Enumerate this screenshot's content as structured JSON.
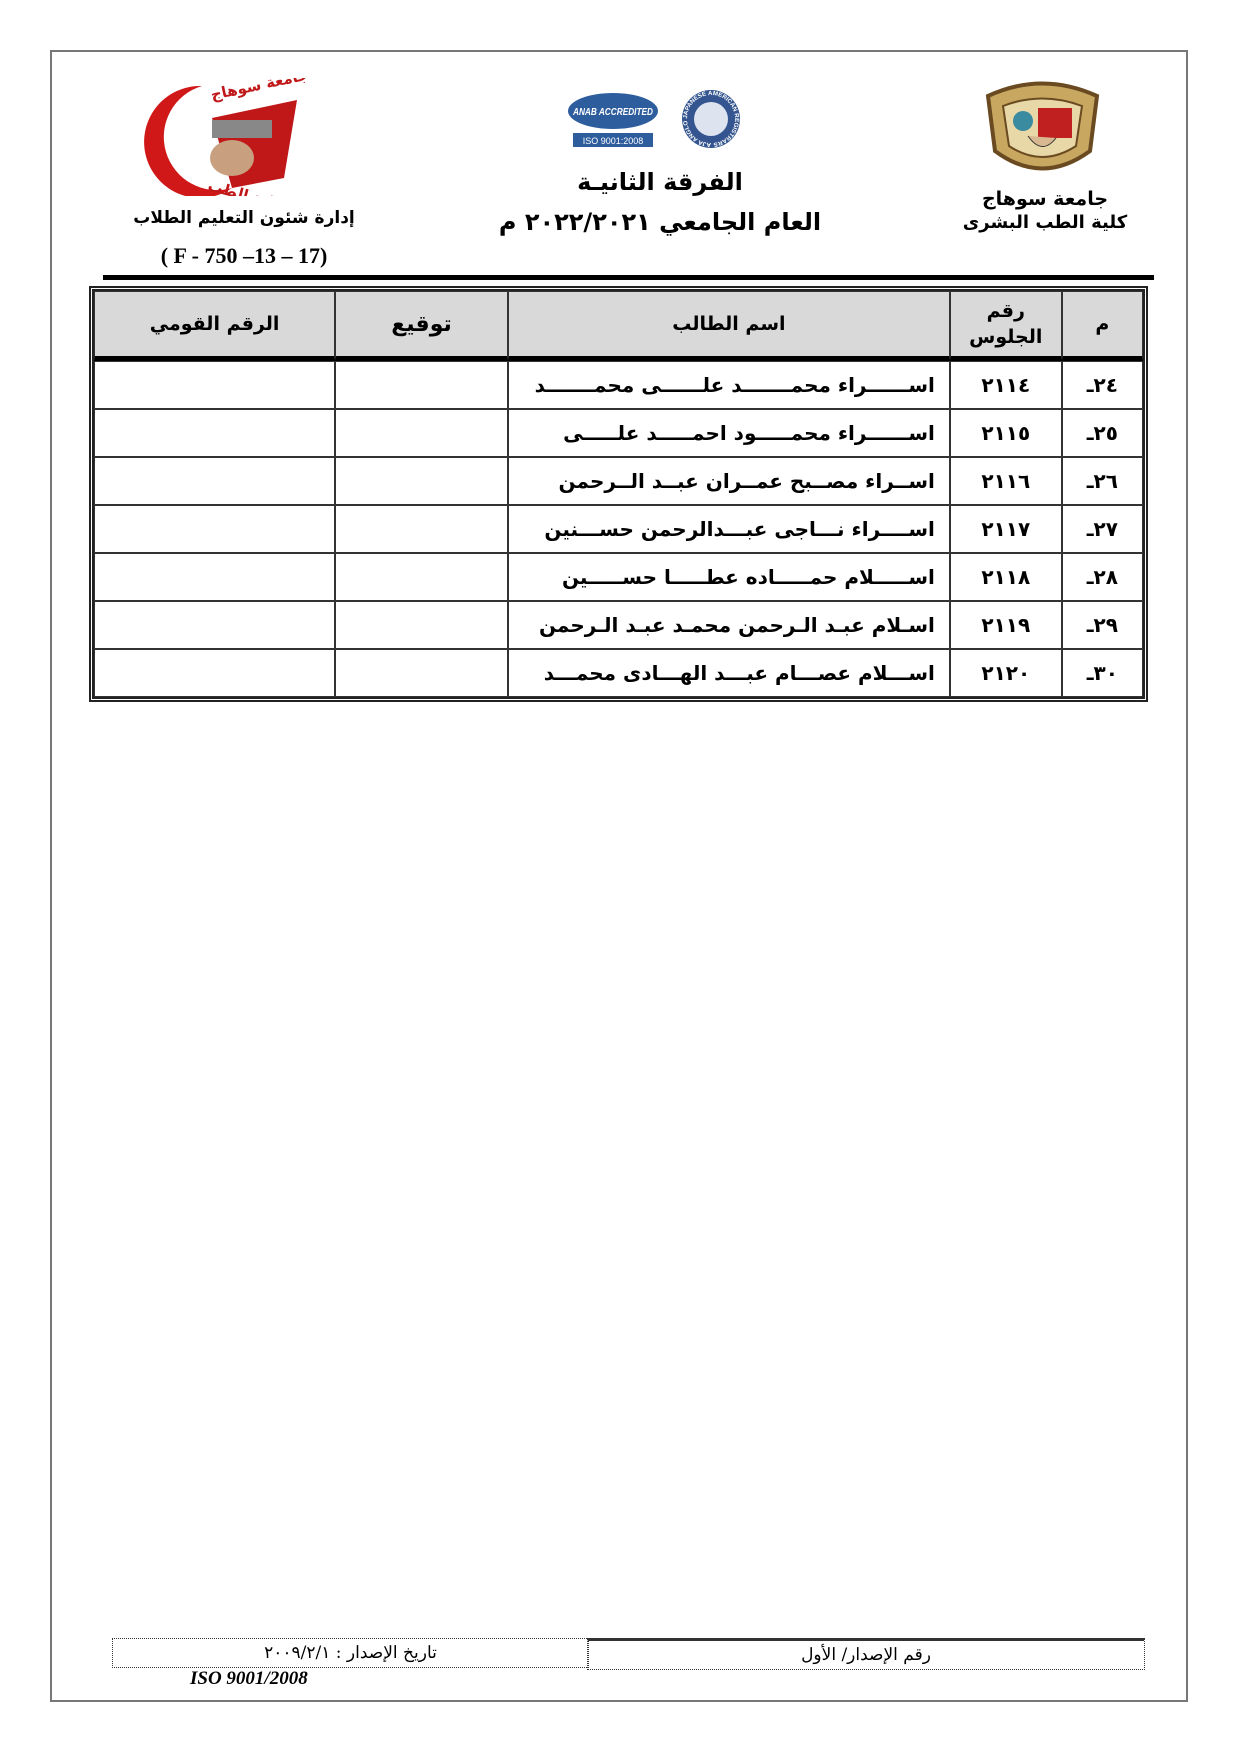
{
  "header": {
    "university": "جامعة سوهاج",
    "faculty": "كلية الطب البشرى",
    "level": "الفرقة الثانيـة",
    "academic_year": "العام الجامعي ٢٠٢٢/٢٠٢١ م",
    "department": "إدارة شئون التعليم الطلاب",
    "form_code": "( F - 750 –13 – 17)",
    "left_logo_text": [
      "جامعة سوهاج",
      "كلية الطب"
    ],
    "accreditation_logos": [
      "ANAB ACCREDITED",
      "ISO 9001:2008",
      "AJA ANGLO JAPANESE AMERICAN REGISTRARS"
    ]
  },
  "table": {
    "columns": [
      "م",
      "رقم الجلوس",
      "اسم الطالب",
      "توقيع",
      "الرقم القومي"
    ],
    "rows": [
      {
        "no": "٢٤ـ",
        "seat": "٢١١٤",
        "name": "اســــــراء محمـــــــد علــــــى محمـــــــد",
        "signature": "",
        "national_id": ""
      },
      {
        "no": "٢٥ـ",
        "seat": "٢١١٥",
        "name": "اســــــراء محمـــــود احمـــــد علـــــى",
        "signature": "",
        "national_id": ""
      },
      {
        "no": "٢٦ـ",
        "seat": "٢١١٦",
        "name": "اســراء مصــبح عمــران عبــد الــرحمن",
        "signature": "",
        "national_id": ""
      },
      {
        "no": "٢٧ـ",
        "seat": "٢١١٧",
        "name": "اســــراء نـــاجى عبـــدالرحمن حســـنين",
        "signature": "",
        "national_id": ""
      },
      {
        "no": "٢٨ـ",
        "seat": "٢١١٨",
        "name": "اســـــلام حمـــــاده عطـــــا حســـــين",
        "signature": "",
        "national_id": ""
      },
      {
        "no": "٢٩ـ",
        "seat": "٢١١٩",
        "name": "اسـلام عبـد الـرحمن محمـد عبـد الـرحمن",
        "signature": "",
        "national_id": ""
      },
      {
        "no": "٣٠ـ",
        "seat": "٢١٢٠",
        "name": "اســـلام عصـــام عبـــد الهـــادى محمـــد",
        "signature": "",
        "national_id": ""
      }
    ]
  },
  "footer": {
    "issue_number": "رقم الإصدار/ الأول",
    "issue_date": "تاريخ الإصدار : ٢٠٠٩/٢/١",
    "iso": "ISO 9001/2008"
  }
}
